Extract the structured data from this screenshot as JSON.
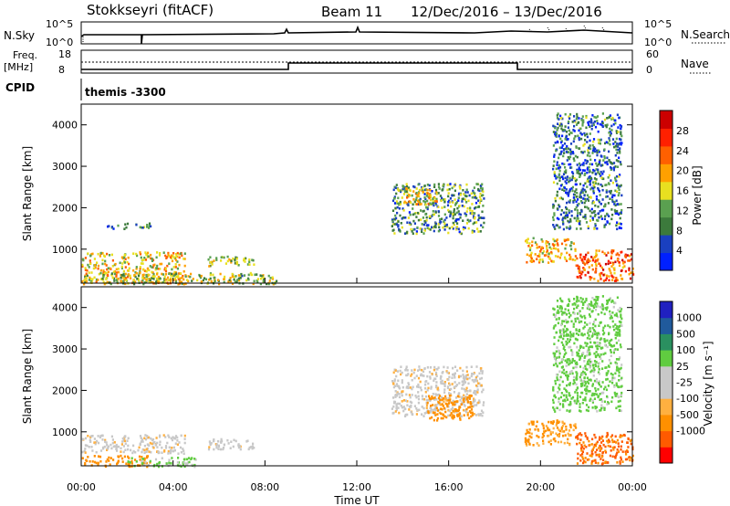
{
  "header": {
    "station": "Stokkseyri (fitACF)",
    "beam": "Beam 11",
    "date_range": "12/Dec/2016 – 13/Dec/2016"
  },
  "status_panels": {
    "nsky_label": "N.Sky",
    "nsky_top": "10^5",
    "nsky_bottom": "10^0",
    "nsearch_label": "N.Search",
    "nsearch_right_top": "10^5",
    "nsearch_right_bottom": "10^0",
    "freq_label": "Freq.",
    "freq_unit": "[MHz]",
    "freq_top": "18",
    "freq_bottom": "8",
    "nave_label": "Nave",
    "nave_top": "60",
    "nave_bottom": "0",
    "cpid_label": "CPID",
    "cpid_value": "themis -3300"
  },
  "colors": {
    "power": [
      "#0020ff",
      "#1a40c0",
      "#3c7a3c",
      "#5aa050",
      "#e8e020",
      "#ffa000",
      "#ff6000",
      "#ff2000",
      "#cc0000"
    ],
    "velocity": [
      "#ff0000",
      "#ff5a00",
      "#ff9000",
      "#ffb040",
      "#c8c8c8",
      "#c8c8c8",
      "#60cc40",
      "#2a9060",
      "#205a9c",
      "#2020c0"
    ]
  },
  "chart_data": [
    {
      "type": "heatmap",
      "ylabel": "Slant Range [km]",
      "ylim": [
        180,
        4500
      ],
      "xlim_hours": [
        0,
        24
      ],
      "yticks": [
        "1000",
        "2000",
        "3000",
        "4000"
      ],
      "colorbar": {
        "label": "Power [dB]",
        "ticks": [
          "4",
          "8",
          "12",
          "16",
          "20",
          "24",
          "28"
        ],
        "range": [
          0,
          32
        ]
      },
      "regions": [
        {
          "t0": 0.0,
          "t1": 4.5,
          "r0": 180,
          "r1": 950,
          "value": 18
        },
        {
          "t0": 0.0,
          "t1": 8.5,
          "r0": 180,
          "r1": 450,
          "value": 14
        },
        {
          "t0": 1.0,
          "t1": 3.0,
          "r0": 1500,
          "r1": 1650,
          "value": 8
        },
        {
          "t0": 5.5,
          "t1": 7.5,
          "r0": 600,
          "r1": 850,
          "value": 14
        },
        {
          "t0": 13.5,
          "t1": 17.5,
          "r0": 1400,
          "r1": 2600,
          "value": 10
        },
        {
          "t0": 14.0,
          "t1": 15.5,
          "r0": 2100,
          "r1": 2500,
          "value": 18
        },
        {
          "t0": 19.3,
          "t1": 21.5,
          "r0": 700,
          "r1": 1300,
          "value": 18
        },
        {
          "t0": 21.5,
          "t1": 24.0,
          "r0": 250,
          "r1": 1000,
          "value": 24
        },
        {
          "t0": 20.5,
          "t1": 23.5,
          "r0": 1500,
          "r1": 4300,
          "value": 8
        }
      ]
    },
    {
      "type": "heatmap",
      "ylabel": "Slant Range [km]",
      "xlabel": "Time UT",
      "ylim": [
        180,
        4500
      ],
      "xlim_hours": [
        0,
        24
      ],
      "yticks": [
        "1000",
        "2000",
        "3000",
        "4000"
      ],
      "xticks": [
        "00:00",
        "04:00",
        "08:00",
        "12:00",
        "16:00",
        "20:00",
        "00:00"
      ],
      "colorbar": {
        "label": "Velocity [m s⁻¹]",
        "ticks": [
          "1000",
          "500",
          "100",
          "25",
          "-25",
          "-100",
          "-500",
          "-1000"
        ]
      },
      "regions": [
        {
          "t0": 0.0,
          "t1": 4.5,
          "r0": 500,
          "r1": 950,
          "value": 0
        },
        {
          "t0": 0.0,
          "t1": 3.0,
          "r0": 180,
          "r1": 450,
          "value": -300
        },
        {
          "t0": 2.0,
          "t1": 5.0,
          "r0": 180,
          "r1": 400,
          "value": 150
        },
        {
          "t0": 5.5,
          "t1": 7.5,
          "r0": 600,
          "r1": 850,
          "value": 0
        },
        {
          "t0": 13.5,
          "t1": 17.5,
          "r0": 1400,
          "r1": 2600,
          "value": 0
        },
        {
          "t0": 15.0,
          "t1": 17.0,
          "r0": 1300,
          "r1": 1900,
          "value": -300
        },
        {
          "t0": 19.3,
          "t1": 21.5,
          "r0": 700,
          "r1": 1300,
          "value": -150
        },
        {
          "t0": 21.5,
          "t1": 24.0,
          "r0": 250,
          "r1": 1000,
          "value": -600
        },
        {
          "t0": 20.5,
          "t1": 23.5,
          "r0": 1500,
          "r1": 4300,
          "value": 200
        }
      ]
    }
  ]
}
